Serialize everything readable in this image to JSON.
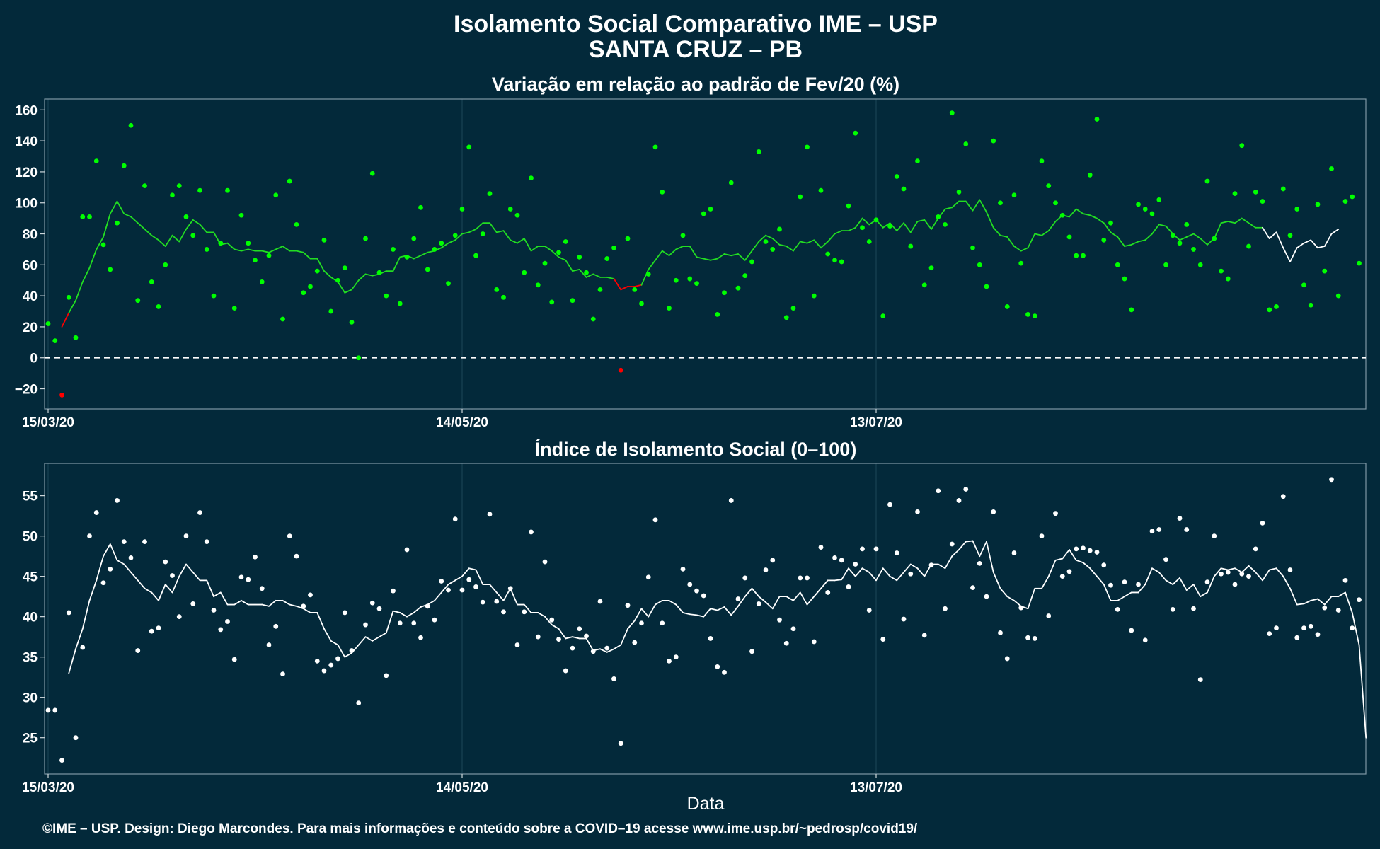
{
  "title": "Isolamento Social Comparativo IME – USP",
  "subtitle": "SANTA CRUZ – PB",
  "xlabel": "Data",
  "footer": "©IME – USP. Design: Diego Marcondes. Para mais informações e conteúdo sobre a COVID–19 acesse www.ime.usp.br/~pedrosp/covid19/",
  "colors": {
    "background": "#03293a",
    "green_points": "#00ff00",
    "green_line": "#22dd22",
    "negative": "#ff0000",
    "white": "#ffffff",
    "grid": "#1c4658"
  },
  "chart_data": [
    {
      "type": "scatter",
      "title": "Variação em relação ao padrão de Fev/20 (%)",
      "xlabel": "",
      "ylabel": "",
      "x_start": "15/03/20",
      "x_ticks": [
        "15/03/20",
        "14/05/20",
        "13/07/20"
      ],
      "x_tick_days": [
        0,
        60,
        120
      ],
      "ylim": [
        -33,
        167
      ],
      "yticks": [
        -20,
        0,
        20,
        40,
        60,
        80,
        100,
        120,
        140,
        160
      ],
      "reference_line": 0,
      "colors_rule": "green when >= 0, red when < 0; moving-average line green, white at end",
      "points": [
        22,
        11,
        -24,
        39,
        13,
        91,
        91,
        127,
        73,
        57,
        87,
        124,
        150,
        37,
        111,
        49,
        33,
        60,
        105,
        111,
        91,
        79,
        108,
        70,
        40,
        74,
        108,
        32,
        92,
        74,
        63,
        49,
        66,
        105,
        25,
        114,
        86,
        42,
        46,
        56,
        76,
        30,
        50,
        58,
        23,
        0,
        77,
        119,
        55,
        40,
        70,
        35,
        65,
        77,
        97,
        57,
        70,
        74,
        48,
        79,
        96,
        136,
        66,
        80,
        106,
        44,
        39,
        96,
        92,
        55,
        116,
        47,
        61,
        36,
        68,
        75,
        37,
        65,
        55,
        25,
        44,
        64,
        71,
        -8,
        77,
        44,
        35,
        54,
        136,
        107,
        32,
        50,
        79,
        51,
        48,
        93,
        96,
        28,
        42,
        113,
        45,
        53,
        62,
        133,
        75,
        70,
        83,
        26,
        32,
        104,
        136,
        40,
        108,
        67,
        63,
        62,
        98,
        145,
        84,
        75,
        89,
        27,
        85,
        117,
        109,
        72,
        127,
        47,
        58,
        91,
        86,
        158,
        107,
        138,
        71,
        60,
        46,
        140,
        100,
        33,
        105,
        61,
        28,
        27,
        127,
        111,
        100,
        92,
        78,
        66,
        66,
        118,
        154,
        76,
        87,
        60,
        51,
        31,
        99,
        96,
        93,
        102,
        60,
        79,
        74,
        86,
        70,
        60,
        114,
        77,
        56,
        51,
        106,
        137,
        72,
        107,
        101,
        31,
        33,
        109,
        79,
        96,
        47,
        34,
        99,
        56,
        122,
        40,
        101,
        104,
        61
      ],
      "moving_average": [
        null,
        null,
        20,
        29,
        37,
        49,
        58,
        70,
        78,
        93,
        101,
        93,
        91,
        87,
        83,
        79,
        76,
        72,
        79,
        75,
        83,
        89,
        86,
        81,
        81,
        73,
        74,
        70,
        69,
        70,
        69,
        69,
        68,
        70,
        72,
        69,
        69,
        68,
        64,
        64,
        56,
        52,
        49,
        42,
        44,
        50,
        54,
        53,
        54,
        56,
        56,
        65,
        66,
        64,
        66,
        68,
        69,
        71,
        74,
        76,
        80,
        81,
        83,
        87,
        87,
        81,
        82,
        76,
        74,
        77,
        69,
        72,
        72,
        69,
        65,
        63,
        56,
        57,
        52,
        54,
        52,
        52,
        51,
        44,
        46,
        46,
        47,
        57,
        63,
        69,
        66,
        70,
        72,
        72,
        65,
        64,
        63,
        64,
        67,
        66,
        67,
        63,
        69,
        75,
        79,
        77,
        73,
        72,
        69,
        75,
        74,
        76,
        71,
        75,
        80,
        82,
        82,
        84,
        90,
        86,
        89,
        84,
        87,
        82,
        87,
        81,
        88,
        89,
        83,
        90,
        96,
        97,
        101,
        101,
        95,
        102,
        94,
        84,
        79,
        78,
        72,
        69,
        71,
        80,
        79,
        82,
        88,
        92,
        91,
        96,
        93,
        92,
        90,
        87,
        81,
        78,
        72,
        73,
        75,
        76,
        80,
        86,
        85,
        80,
        76,
        78,
        80,
        77,
        73,
        77,
        87,
        88,
        87,
        90,
        87,
        84,
        84,
        77,
        81,
        71,
        62,
        71,
        74,
        76,
        71,
        72,
        80,
        83
      ]
    },
    {
      "type": "scatter",
      "title": "Índice de Isolamento Social (0–100)",
      "xlabel": "Data",
      "ylabel": "",
      "x_start": "15/03/20",
      "x_ticks": [
        "15/03/20",
        "14/05/20",
        "13/07/20"
      ],
      "x_tick_days": [
        0,
        60,
        120
      ],
      "ylim": [
        20.5,
        59
      ],
      "yticks": [
        25,
        30,
        35,
        40,
        45,
        50,
        55
      ],
      "points": [
        28.4,
        28.4,
        22.2,
        40.5,
        25.0,
        36.2,
        50.0,
        52.9,
        44.2,
        45.9,
        54.4,
        49.3,
        47.3,
        35.8,
        49.3,
        38.2,
        38.6,
        46.8,
        45.1,
        40.0,
        50.0,
        41.6,
        52.9,
        49.3,
        40.8,
        38.4,
        39.4,
        34.7,
        44.9,
        44.6,
        47.4,
        43.5,
        36.5,
        38.8,
        32.9,
        50.0,
        47.5,
        41.3,
        42.7,
        34.5,
        33.3,
        34.0,
        34.8,
        40.5,
        35.8,
        29.3,
        39.0,
        41.7,
        41.0,
        32.7,
        43.2,
        39.2,
        48.3,
        39.2,
        37.4,
        41.3,
        39.6,
        44.4,
        43.3,
        52.1,
        43.3,
        44.6,
        43.7,
        41.8,
        52.7,
        41.9,
        40.6,
        43.5,
        36.5,
        40.6,
        50.5,
        37.5,
        46.8,
        39.6,
        37.2,
        33.3,
        36.1,
        38.5,
        37.6,
        35.7,
        41.9,
        36.1,
        32.3,
        24.3,
        41.4,
        36.8,
        39.2,
        44.9,
        52.0,
        39.2,
        34.5,
        35.0,
        45.9,
        44.0,
        43.2,
        42.6,
        37.3,
        33.8,
        33.1,
        54.4,
        42.2,
        44.8,
        35.7,
        41.6,
        45.8,
        47.0,
        39.6,
        36.7,
        38.5,
        44.8,
        44.8,
        36.9,
        48.6,
        43.0,
        47.3,
        47.0,
        43.7,
        46.5,
        48.4,
        40.8,
        48.4,
        37.2,
        53.9,
        47.9,
        39.7,
        45.3,
        53.0,
        37.7,
        46.4,
        55.6,
        41.0,
        49.0,
        54.4,
        55.8,
        43.6,
        46.6,
        42.5,
        53.0,
        38.0,
        34.8,
        47.9,
        41.1,
        37.4,
        37.3,
        50.0,
        40.1,
        52.8,
        45.0,
        45.6,
        48.4,
        48.5,
        48.2,
        48.0,
        46.4,
        43.9,
        40.9,
        44.3,
        38.3,
        44.0,
        37.1,
        50.6,
        50.8,
        47.1,
        40.9,
        52.2,
        50.8,
        41.0,
        32.2,
        44.3,
        50.0,
        45.3,
        45.5,
        44.0,
        45.3,
        45.0,
        48.4,
        51.6,
        37.9,
        38.6,
        54.9,
        45.8,
        37.4,
        38.6,
        38.8,
        37.8,
        41.1,
        57.0,
        40.8,
        44.5,
        38.6,
        42.1
      ],
      "moving_average": [
        null,
        null,
        null,
        33.0,
        36.0,
        38.5,
        42.0,
        44.5,
        47.5,
        49.0,
        47.0,
        46.5,
        45.5,
        44.5,
        43.5,
        43.0,
        42.0,
        44.0,
        43.0,
        45.0,
        46.5,
        45.5,
        44.5,
        44.5,
        42.5,
        43.0,
        41.5,
        41.5,
        42.0,
        41.5,
        41.5,
        41.5,
        41.3,
        42.0,
        42.0,
        41.5,
        41.3,
        41.0,
        40.5,
        40.5,
        38.5,
        37.0,
        36.5,
        35.0,
        35.5,
        36.5,
        37.5,
        37.0,
        37.5,
        38.0,
        40.7,
        40.5,
        40.0,
        40.5,
        41.2,
        41.5,
        42.0,
        43.0,
        44.0,
        44.5,
        45.0,
        46.0,
        45.8,
        44.0,
        44.0,
        43.0,
        42.0,
        43.5,
        41.5,
        41.5,
        40.5,
        40.5,
        40.0,
        39.0,
        38.5,
        37.3,
        37.5,
        37.3,
        37.3,
        35.8,
        36.0,
        35.6,
        36.0,
        36.5,
        38.5,
        39.5,
        41.0,
        40.0,
        41.5,
        42.0,
        42.0,
        41.5,
        40.5,
        40.3,
        40.2,
        40.0,
        41.0,
        40.8,
        41.2,
        40.2,
        41.3,
        42.5,
        43.5,
        42.5,
        41.8,
        41.0,
        42.5,
        42.5,
        42.0,
        43.0,
        41.5,
        42.5,
        43.5,
        44.5,
        44.5,
        44.6,
        46.0,
        45.0,
        46.0,
        45.5,
        44.5,
        46.0,
        45.0,
        44.5,
        45.5,
        46.5,
        46.0,
        45.0,
        46.5,
        46.5,
        46.0,
        47.5,
        48.3,
        49.3,
        49.4,
        47.5,
        49.3,
        45.5,
        43.5,
        42.5,
        42.0,
        41.3,
        41.0,
        43.5,
        43.5,
        45.0,
        47.0,
        47.2,
        48.3,
        47.0,
        46.7,
        46.0,
        45.0,
        44.0,
        42.0,
        42.0,
        42.5,
        43.0,
        43.0,
        44.0,
        46.0,
        45.5,
        44.5,
        44.0,
        44.8,
        43.3,
        44.0,
        42.5,
        43.0,
        45.0,
        46.0,
        45.8,
        46.0,
        45.5,
        46.3,
        45.5,
        44.5,
        45.8,
        46.0,
        45.0,
        43.5,
        41.5,
        41.6,
        42.0,
        42.2,
        41.5,
        42.5,
        42.5,
        43.0,
        40.5,
        36.5,
        25.0
      ]
    }
  ]
}
